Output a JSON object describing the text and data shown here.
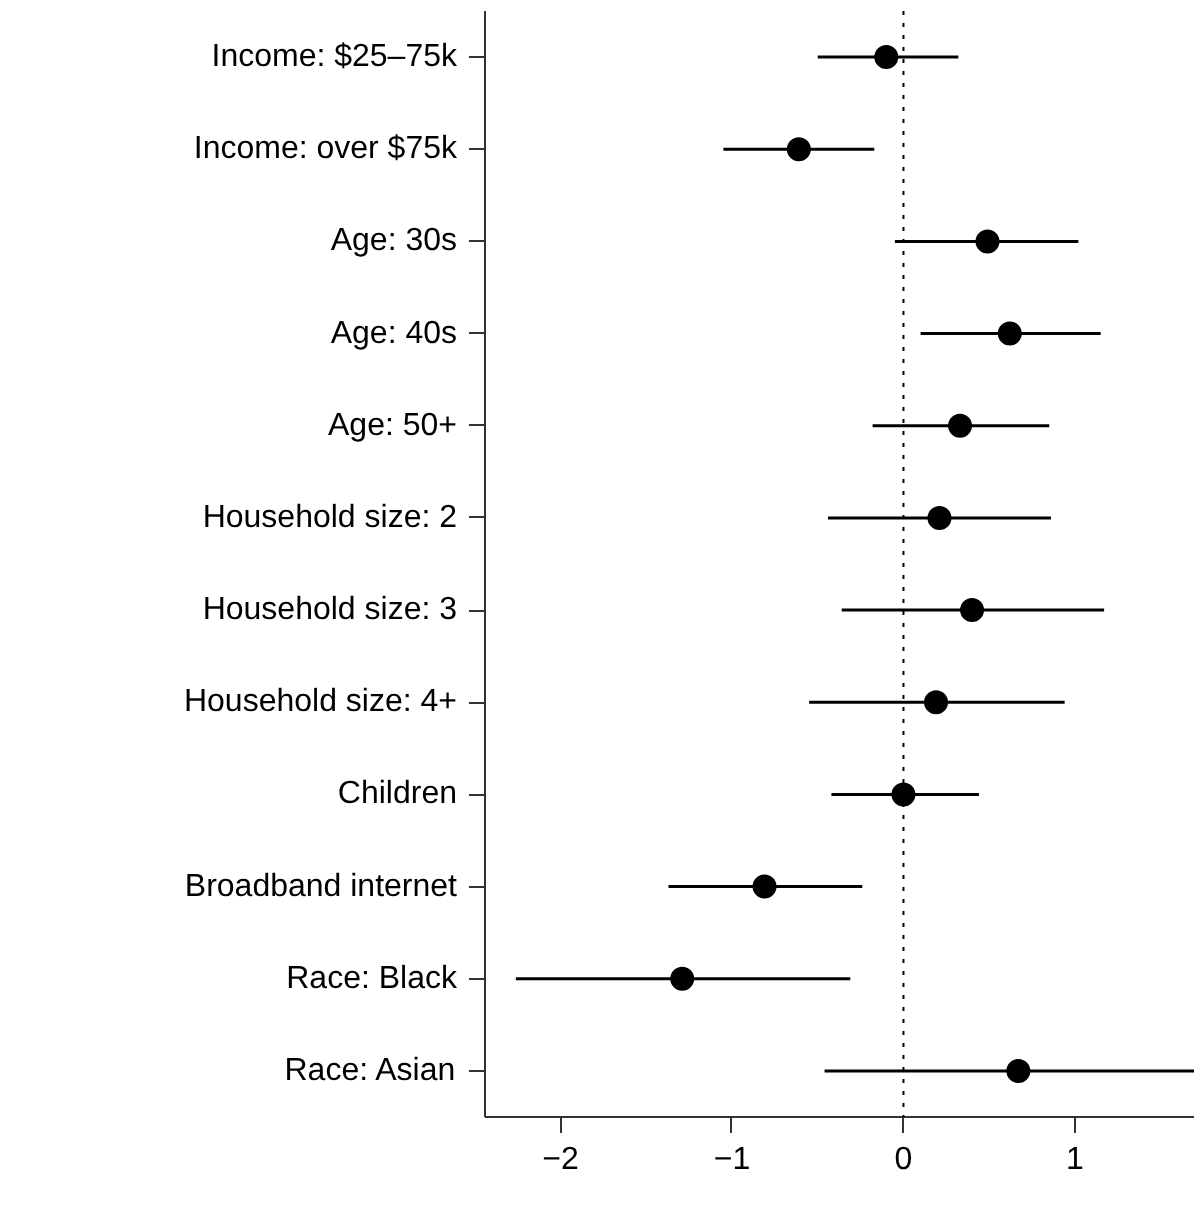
{
  "chart_data": {
    "type": "scatter",
    "orientation": "horizontal",
    "categories": [
      "Income: $25–75k",
      "Income: over $75k",
      "Age: 30s",
      "Age: 40s",
      "Age: 50+",
      "Household size: 2",
      "Household size: 3",
      "Household size: 4+",
      "Children",
      "Broadband internet",
      "Race: Black",
      "Race: Asian"
    ],
    "values": [
      -0.1,
      -0.61,
      0.49,
      0.62,
      0.33,
      0.21,
      0.4,
      0.19,
      0.0,
      -0.81,
      -1.29,
      0.67
    ],
    "errors": [
      [
        -0.5,
        0.32
      ],
      [
        -1.05,
        -0.17
      ],
      [
        -0.05,
        1.02
      ],
      [
        0.1,
        1.15
      ],
      [
        -0.18,
        0.85
      ],
      [
        -0.44,
        0.86
      ],
      [
        -0.36,
        1.17
      ],
      [
        -0.55,
        0.94
      ],
      [
        -0.42,
        0.44
      ],
      [
        -1.37,
        -0.24
      ],
      [
        -2.26,
        -0.31
      ],
      [
        -0.46,
        1.7
      ]
    ],
    "color": "#000000",
    "marker": "circle",
    "grid": false,
    "xlim": [
      -2.44,
      1.7
    ],
    "xticks": [
      {
        "value": -2,
        "label": "−2"
      },
      {
        "value": -1,
        "label": "−1"
      },
      0,
      1
    ],
    "ref_lines": [
      {
        "axis": "x",
        "value": 0,
        "label": null,
        "color": "#000000",
        "line_style": "dotted"
      }
    ]
  }
}
